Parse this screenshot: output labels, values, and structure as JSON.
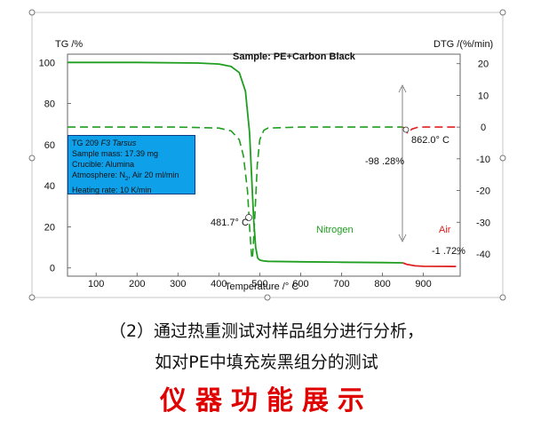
{
  "chart_data": {
    "type": "line",
    "title": "Sample: PE+Carbon Black",
    "xlabel": "Temperature /° C",
    "ylabel_left": "TG /%",
    "ylabel_right": "DTG /(%/min)",
    "xlim": [
      30,
      990
    ],
    "ylim_left": [
      -4,
      104
    ],
    "ylim_right": [
      -47,
      23
    ],
    "x_ticks": [
      100,
      200,
      300,
      400,
      500,
      600,
      700,
      800,
      900
    ],
    "y_ticks_left": [
      0,
      20,
      40,
      60,
      80,
      100
    ],
    "y_ticks_right": [
      20,
      10,
      0,
      -10,
      -20,
      -30,
      -40
    ],
    "grid": false,
    "series": [
      {
        "name": "TG",
        "axis": "left",
        "style": "solid",
        "segments": [
          {
            "color": "#1f9e1f",
            "x": [
              30,
              200,
              350,
              400,
              430,
              450,
              465,
              475,
              480,
              485,
              490,
              495,
              500,
              510,
              520,
              600,
              700,
              800,
              850
            ],
            "y": [
              100,
              100,
              99.7,
              99.2,
              98.0,
              95.0,
              86.0,
              66.0,
              45.0,
              24.0,
              10.0,
              4.8,
              3.8,
              3.4,
              3.2,
              3.0,
              2.8,
              2.6,
              2.5
            ]
          },
          {
            "color": "#e02020",
            "x": [
              850,
              860,
              880,
              900,
              950,
              980
            ],
            "y": [
              2.5,
              1.7,
              1.0,
              0.8,
              0.75,
              0.72
            ]
          }
        ]
      },
      {
        "name": "DTG",
        "axis": "right",
        "style": "dashed",
        "segments": [
          {
            "color": "#1f9e1f",
            "x": [
              30,
              300,
              400,
              430,
              450,
              460,
              470,
              476,
              480,
              482,
              484,
              488,
              494,
              500,
              510,
              520,
              600,
              700,
              800,
              850
            ],
            "y": [
              0,
              0,
              -0.3,
              -1.2,
              -4.0,
              -9.0,
              -20.0,
              -33.0,
              -40.5,
              -41.5,
              -38.0,
              -28.0,
              -12.0,
              -4.0,
              -1.0,
              -0.3,
              0,
              0,
              0,
              0
            ]
          },
          {
            "color": "#e02020",
            "x": [
              850,
              855,
              860,
              862,
              866,
              872,
              885,
              900,
              950,
              980
            ],
            "y": [
              0,
              -0.5,
              -1.7,
              -2.0,
              -1.4,
              -0.6,
              -0.1,
              0,
              0,
              0
            ]
          }
        ]
      }
    ],
    "annotations": {
      "peak1": "481.7° C",
      "peak2": "862.0° C",
      "mass_loss_1": "-98 .28%",
      "mass_loss_2": "-1 .72%",
      "nitrogen": "Nitrogen",
      "air": "Air"
    },
    "colors": {
      "nitrogen": "#1f9e1f",
      "air": "#e02020",
      "box": "#0fa0ea"
    },
    "info_box": {
      "line1_prefix": "TG 209 ",
      "line1_model": "F3 Tarsus",
      "line2": "Sample mass: 17.39 mg",
      "line3": "Crucible: Alumina",
      "line4_prefix": "Atmosphere: N",
      "line4_sub": "2",
      "line4_suffix": ", Air 20 ml/min",
      "line5": "Heating rate: 10 K/min"
    }
  },
  "caption": {
    "line1": "（2）通过热重测试对样品组分进行分析，",
    "line2": "如对PE中填充炭黑组分的测试"
  },
  "banner": "仪器功能展示"
}
